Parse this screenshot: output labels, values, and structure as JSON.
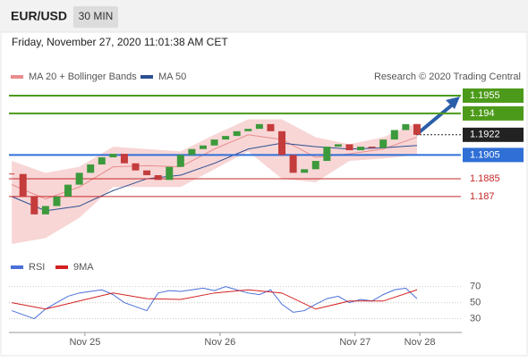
{
  "header": {
    "symbol": "EUR/USD",
    "interval": "30 MIN",
    "timestamp": "Friday, November 27, 2020 11:01:38 AM CET"
  },
  "chart_data": [
    {
      "type": "candlestick",
      "legend": [
        {
          "name": "MA 20 + Bollinger Bands",
          "color": "#e88c8c"
        },
        {
          "name": "MA 50",
          "color": "#2d4f91"
        }
      ],
      "credit": "Research © 2020 Trading Central",
      "xlim": [
        -13.5,
        66.8
      ],
      "xticks": [
        {
          "value": 0,
          "label": "Nov 25"
        },
        {
          "value": 24,
          "label": "Nov 26"
        },
        {
          "value": 48,
          "label": "Nov 27"
        },
        {
          "value": 59.5,
          "label": "Nov 28"
        }
      ],
      "ylim": [
        1.1821,
        1.1964
      ],
      "price": {
        "up_color": "#3c9a3c",
        "down_color": "#c43c3c",
        "x": [
          -13,
          -11,
          -9,
          -7,
          -5,
          -3,
          -1,
          1,
          3,
          5,
          7,
          9,
          11,
          13,
          15,
          17,
          19,
          21,
          23,
          25,
          27,
          29,
          31,
          33,
          35,
          37,
          39,
          41,
          43,
          45,
          47,
          49,
          51,
          53,
          55,
          57,
          59
        ],
        "values": [
          1.1889,
          1.187,
          1.1855,
          1.1862,
          1.187,
          1.188,
          1.189,
          1.1897,
          1.1903,
          1.1906,
          1.1898,
          1.1892,
          1.1888,
          1.1884,
          1.1895,
          1.1905,
          1.191,
          1.1913,
          1.1918,
          1.1921,
          1.1925,
          1.1927,
          1.1931,
          1.1925,
          1.1905,
          1.189,
          1.1893,
          1.19,
          1.1912,
          1.1914,
          1.1909,
          1.1912,
          1.1911,
          1.1918,
          1.1926,
          1.1931,
          1.1922
        ]
      },
      "indicator_x": [
        -13,
        -7,
        -1,
        5,
        11,
        17,
        23,
        29,
        35,
        41,
        47,
        53,
        59
      ],
      "band": {
        "color": "#f6cccc",
        "upper": [
          1.19,
          1.189,
          1.1895,
          1.1912,
          1.191,
          1.1908,
          1.1922,
          1.1935,
          1.1935,
          1.192,
          1.1914,
          1.192,
          1.1932
        ],
        "lower": [
          1.183,
          1.1835,
          1.1852,
          1.1878,
          1.1878,
          1.1878,
          1.1893,
          1.1908,
          1.1885,
          1.1882,
          1.19,
          1.1902,
          1.1905
        ]
      },
      "ma20": [
        1.188,
        1.1868,
        1.1878,
        1.1895,
        1.1896,
        1.1895,
        1.191,
        1.1922,
        1.1918,
        1.1903,
        1.1906,
        1.191,
        1.192
      ],
      "ma50": [
        1.187,
        1.1858,
        1.1862,
        1.1875,
        1.1885,
        1.1888,
        1.1898,
        1.191,
        1.1915,
        1.1912,
        1.191,
        1.1911,
        1.1913
      ],
      "levels": [
        {
          "value": 1.1955,
          "color": "#4c9a1a",
          "style": "solid",
          "box": true
        },
        {
          "value": 1.194,
          "color": "#4c9a1a",
          "style": "solid",
          "box": true
        },
        {
          "value": 1.1922,
          "color": "#222222",
          "style": "dotted",
          "box": true
        },
        {
          "value": 1.1905,
          "color": "#2f6fd6",
          "style": "solid",
          "box": true
        },
        {
          "value": 1.1885,
          "color": "#c62828",
          "style": "solid",
          "box": false
        },
        {
          "value": 1.187,
          "color": "#c62828",
          "style": "solid",
          "box": false
        }
      ]
    },
    {
      "type": "line",
      "series": [
        {
          "name": "RSI",
          "color": "#4a6fd8",
          "values": [
            40,
            35,
            30,
            42,
            50,
            58,
            62,
            64,
            66,
            60,
            50,
            45,
            40,
            62,
            65,
            64,
            66,
            68,
            65,
            70,
            66,
            62,
            60,
            66,
            48,
            38,
            40,
            48,
            55,
            58,
            50,
            54,
            52,
            60,
            66,
            68,
            55
          ]
        },
        {
          "name": "9MA",
          "color": "#d42020",
          "values": [
            50,
            42,
            52,
            62,
            55,
            54,
            62,
            66,
            62,
            42,
            52,
            52,
            66
          ]
        }
      ],
      "ylim": [
        15,
        93
      ],
      "yticks": [
        70,
        50,
        30
      ]
    }
  ]
}
